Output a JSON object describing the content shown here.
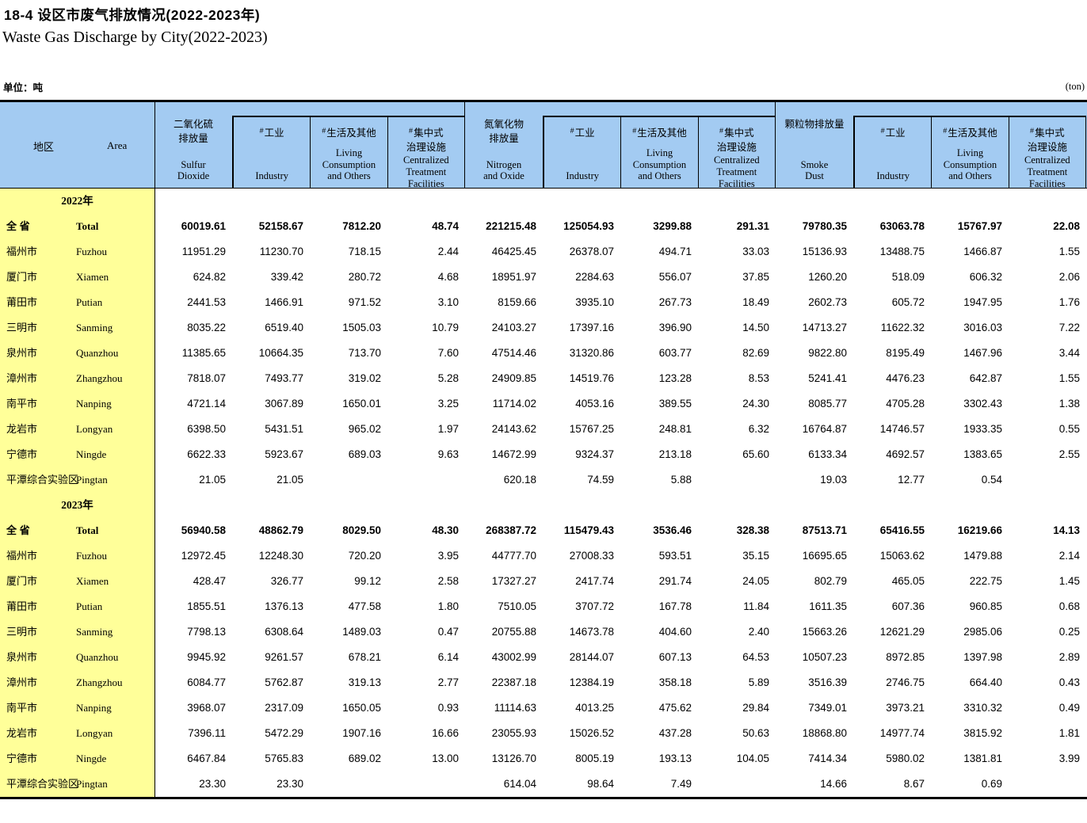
{
  "title_cn": "18-4  设区市废气排放情况(2022-2023年)",
  "title_en": "Waste Gas Discharge by City(2022-2023)",
  "unit_cn": "单位：吨",
  "unit_en": "(ton)",
  "colors": {
    "header_blue": "#A3CBF2",
    "area_yellow": "#FFFF99",
    "border_black": "#000000"
  },
  "header": {
    "area_cn": "地区",
    "area_en": "Area",
    "groups": [
      {
        "cn": "二氧化硫\n排放量",
        "en": "Sulfur\nDioxide",
        "subs": [
          {
            "hash": "#",
            "cn": "工业",
            "en": "Industry"
          },
          {
            "hash": "#",
            "cn": "生活及其他",
            "en": "Living\nConsumption\nand Others"
          },
          {
            "hash": "#",
            "cn": "集中式\n治理设施",
            "en": "Centralized\nTreatment\nFacilities"
          }
        ]
      },
      {
        "cn": "氮氧化物\n排放量",
        "en": "Nitrogen\nand Oxide",
        "subs": [
          {
            "hash": "#",
            "cn": "工业",
            "en": "Industry"
          },
          {
            "hash": "#",
            "cn": "生活及其他",
            "en": "Living\nConsumption\nand Others"
          },
          {
            "hash": "#",
            "cn": "集中式\n治理设施",
            "en": "Centralized\nTreatment\nFacilities"
          }
        ]
      },
      {
        "cn": "颗粒物排放量",
        "en": "Smoke\nDust",
        "subs": [
          {
            "hash": "#",
            "cn": "工业",
            "en": "Industry"
          },
          {
            "hash": "#",
            "cn": "生活及其他",
            "en": "Living\nConsumption\nand Others"
          },
          {
            "hash": "#",
            "cn": "集中式\n治理设施",
            "en": "Centralized\nTreatment\nFacilities"
          }
        ]
      }
    ]
  },
  "sections": [
    {
      "year": "2022年",
      "rows": [
        {
          "cn": "全 省",
          "en": "Total",
          "bold": true,
          "values": [
            "60019.61",
            "52158.67",
            "7812.20",
            "48.74",
            "221215.48",
            "125054.93",
            "3299.88",
            "291.31",
            "79780.35",
            "63063.78",
            "15767.97",
            "22.08"
          ]
        },
        {
          "cn": "福州市",
          "en": "Fuzhou",
          "values": [
            "11951.29",
            "11230.70",
            "718.15",
            "2.44",
            "46425.45",
            "26378.07",
            "494.71",
            "33.03",
            "15136.93",
            "13488.75",
            "1466.87",
            "1.55"
          ]
        },
        {
          "cn": "厦门市",
          "en": "Xiamen",
          "values": [
            "624.82",
            "339.42",
            "280.72",
            "4.68",
            "18951.97",
            "2284.63",
            "556.07",
            "37.85",
            "1260.20",
            "518.09",
            "606.32",
            "2.06"
          ]
        },
        {
          "cn": "莆田市",
          "en": "Putian",
          "values": [
            "2441.53",
            "1466.91",
            "971.52",
            "3.10",
            "8159.66",
            "3935.10",
            "267.73",
            "18.49",
            "2602.73",
            "605.72",
            "1947.95",
            "1.76"
          ]
        },
        {
          "cn": "三明市",
          "en": "Sanming",
          "values": [
            "8035.22",
            "6519.40",
            "1505.03",
            "10.79",
            "24103.27",
            "17397.16",
            "396.90",
            "14.50",
            "14713.27",
            "11622.32",
            "3016.03",
            "7.22"
          ]
        },
        {
          "cn": "泉州市",
          "en": "Quanzhou",
          "values": [
            "11385.65",
            "10664.35",
            "713.70",
            "7.60",
            "47514.46",
            "31320.86",
            "603.77",
            "82.69",
            "9822.80",
            "8195.49",
            "1467.96",
            "3.44"
          ]
        },
        {
          "cn": "漳州市",
          "en": "Zhangzhou",
          "values": [
            "7818.07",
            "7493.77",
            "319.02",
            "5.28",
            "24909.85",
            "14519.76",
            "123.28",
            "8.53",
            "5241.41",
            "4476.23",
            "642.87",
            "1.55"
          ]
        },
        {
          "cn": "南平市",
          "en": "Nanping",
          "values": [
            "4721.14",
            "3067.89",
            "1650.01",
            "3.25",
            "11714.02",
            "4053.16",
            "389.55",
            "24.30",
            "8085.77",
            "4705.28",
            "3302.43",
            "1.38"
          ]
        },
        {
          "cn": "龙岩市",
          "en": "Longyan",
          "values": [
            "6398.50",
            "5431.51",
            "965.02",
            "1.97",
            "24143.62",
            "15767.25",
            "248.81",
            "6.32",
            "16764.87",
            "14746.57",
            "1933.35",
            "0.55"
          ]
        },
        {
          "cn": "宁德市",
          "en": "Ningde",
          "values": [
            "6622.33",
            "5923.67",
            "689.03",
            "9.63",
            "14672.99",
            "9324.37",
            "213.18",
            "65.60",
            "6133.34",
            "4692.57",
            "1383.65",
            "2.55"
          ]
        },
        {
          "cn": "平潭综合实验区",
          "en": "Pingtan",
          "values": [
            "21.05",
            "21.05",
            "",
            "",
            "620.18",
            "74.59",
            "5.88",
            "",
            "19.03",
            "12.77",
            "0.54",
            ""
          ]
        }
      ]
    },
    {
      "year": "2023年",
      "rows": [
        {
          "cn": "全 省",
          "en": "Total",
          "bold": true,
          "values": [
            "56940.58",
            "48862.79",
            "8029.50",
            "48.30",
            "268387.72",
            "115479.43",
            "3536.46",
            "328.38",
            "87513.71",
            "65416.55",
            "16219.66",
            "14.13"
          ]
        },
        {
          "cn": "福州市",
          "en": "Fuzhou",
          "values": [
            "12972.45",
            "12248.30",
            "720.20",
            "3.95",
            "44777.70",
            "27008.33",
            "593.51",
            "35.15",
            "16695.65",
            "15063.62",
            "1479.88",
            "2.14"
          ]
        },
        {
          "cn": "厦门市",
          "en": "Xiamen",
          "values": [
            "428.47",
            "326.77",
            "99.12",
            "2.58",
            "17327.27",
            "2417.74",
            "291.74",
            "24.05",
            "802.79",
            "465.05",
            "222.75",
            "1.45"
          ]
        },
        {
          "cn": "莆田市",
          "en": "Putian",
          "values": [
            "1855.51",
            "1376.13",
            "477.58",
            "1.80",
            "7510.05",
            "3707.72",
            "167.78",
            "11.84",
            "1611.35",
            "607.36",
            "960.85",
            "0.68"
          ]
        },
        {
          "cn": "三明市",
          "en": "Sanming",
          "values": [
            "7798.13",
            "6308.64",
            "1489.03",
            "0.47",
            "20755.88",
            "14673.78",
            "404.60",
            "2.40",
            "15663.26",
            "12621.29",
            "2985.06",
            "0.25"
          ]
        },
        {
          "cn": "泉州市",
          "en": "Quanzhou",
          "values": [
            "9945.92",
            "9261.57",
            "678.21",
            "6.14",
            "43002.99",
            "28144.07",
            "607.13",
            "64.53",
            "10507.23",
            "8972.85",
            "1397.98",
            "2.89"
          ]
        },
        {
          "cn": "漳州市",
          "en": "Zhangzhou",
          "values": [
            "6084.77",
            "5762.87",
            "319.13",
            "2.77",
            "22387.18",
            "12384.19",
            "358.18",
            "5.89",
            "3516.39",
            "2746.75",
            "664.40",
            "0.43"
          ]
        },
        {
          "cn": "南平市",
          "en": "Nanping",
          "values": [
            "3968.07",
            "2317.09",
            "1650.05",
            "0.93",
            "11114.63",
            "4013.25",
            "475.62",
            "29.84",
            "7349.01",
            "3973.21",
            "3310.32",
            "0.49"
          ]
        },
        {
          "cn": "龙岩市",
          "en": "Longyan",
          "values": [
            "7396.11",
            "5472.29",
            "1907.16",
            "16.66",
            "23055.93",
            "15026.52",
            "437.28",
            "50.63",
            "18868.80",
            "14977.74",
            "3815.92",
            "1.81"
          ]
        },
        {
          "cn": "宁德市",
          "en": "Ningde",
          "values": [
            "6467.84",
            "5765.83",
            "689.02",
            "13.00",
            "13126.70",
            "8005.19",
            "193.13",
            "104.05",
            "7414.34",
            "5980.02",
            "1381.81",
            "3.99"
          ]
        },
        {
          "cn": "平潭综合实验区",
          "en": "Pingtan",
          "values": [
            "23.30",
            "23.30",
            "",
            "",
            "614.04",
            "98.64",
            "7.49",
            "",
            "14.66",
            "8.67",
            "0.69",
            ""
          ]
        }
      ]
    }
  ]
}
